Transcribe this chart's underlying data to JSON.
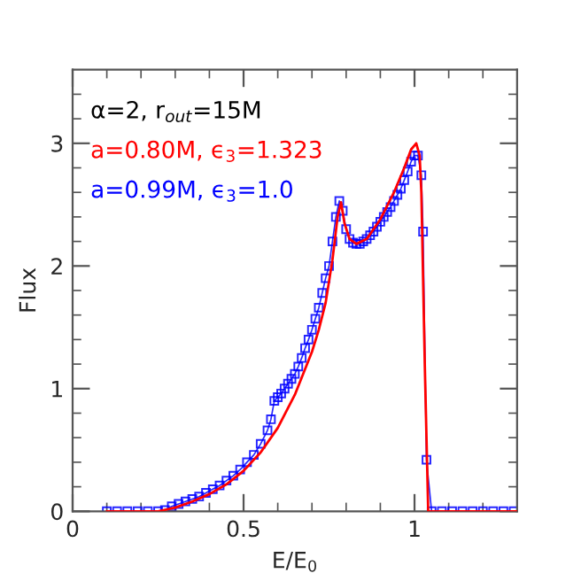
{
  "chart_data": {
    "type": "line",
    "xlabel": "E/E$_{0}$",
    "ylabel": "Flux",
    "annotations": [
      "α=2, r$_{out}$=15M"
    ],
    "xlim": [
      0,
      1.3
    ],
    "ylim": [
      0,
      3.6
    ],
    "xticks": [
      0,
      {
        "value": 0.1,
        "label": null
      },
      {
        "value": 0.2,
        "label": null
      },
      {
        "value": 0.3,
        "label": null
      },
      {
        "value": 0.4,
        "label": null
      },
      0.5,
      {
        "value": 0.6,
        "label": null
      },
      {
        "value": 0.7,
        "label": null
      },
      {
        "value": 0.8,
        "label": null
      },
      {
        "value": 0.9,
        "label": null
      },
      1,
      {
        "value": 1.1,
        "label": null
      },
      {
        "value": 1.2,
        "label": null
      }
    ],
    "yticks": [
      0,
      {
        "value": 0.2,
        "label": null
      },
      {
        "value": 0.4,
        "label": null
      },
      {
        "value": 0.6,
        "label": null
      },
      {
        "value": 0.8,
        "label": null
      },
      1,
      {
        "value": 1.2,
        "label": null
      },
      {
        "value": 1.4,
        "label": null
      },
      {
        "value": 1.6,
        "label": null
      },
      {
        "value": 1.8,
        "label": null
      },
      2,
      {
        "value": 2.2,
        "label": null
      },
      {
        "value": 2.4,
        "label": null
      },
      {
        "value": 2.6,
        "label": null
      },
      {
        "value": 2.8,
        "label": null
      },
      3,
      {
        "value": 3.2,
        "label": null
      },
      {
        "value": 3.4,
        "label": null
      }
    ],
    "grid": false,
    "legend": "top left",
    "series": [
      {
        "name": "a=0.80M, ϵ$_{3}$=1.323",
        "color": "#ff0000",
        "marker": "none",
        "x": [
          0.1,
          0.25,
          0.3,
          0.35,
          0.4,
          0.45,
          0.5,
          0.55,
          0.6,
          0.65,
          0.7,
          0.72,
          0.74,
          0.76,
          0.775,
          0.785,
          0.795,
          0.81,
          0.83,
          0.86,
          0.9,
          0.94,
          0.97,
          0.99,
          1.005,
          1.015,
          1.02,
          1.03,
          1.04,
          1.3
        ],
        "values": [
          0,
          0,
          0.03,
          0.08,
          0.14,
          0.22,
          0.33,
          0.48,
          0.68,
          0.95,
          1.3,
          1.48,
          1.7,
          2.05,
          2.4,
          2.52,
          2.35,
          2.22,
          2.18,
          2.22,
          2.38,
          2.6,
          2.8,
          2.95,
          3.0,
          2.9,
          2.6,
          1.2,
          0,
          0
        ]
      },
      {
        "name": "a=0.99M, ϵ$_{3}$=1.0",
        "color": "#0000ff",
        "marker": "square",
        "x": [
          0.1,
          0.13,
          0.16,
          0.19,
          0.22,
          0.25,
          0.27,
          0.29,
          0.31,
          0.33,
          0.35,
          0.37,
          0.39,
          0.41,
          0.43,
          0.45,
          0.47,
          0.49,
          0.51,
          0.53,
          0.55,
          0.57,
          0.58,
          0.59,
          0.6,
          0.61,
          0.62,
          0.63,
          0.64,
          0.65,
          0.66,
          0.67,
          0.68,
          0.69,
          0.7,
          0.71,
          0.72,
          0.73,
          0.74,
          0.75,
          0.76,
          0.77,
          0.78,
          0.79,
          0.8,
          0.81,
          0.82,
          0.83,
          0.84,
          0.85,
          0.86,
          0.87,
          0.88,
          0.89,
          0.9,
          0.91,
          0.92,
          0.93,
          0.94,
          0.95,
          0.96,
          0.97,
          0.98,
          0.99,
          1.0,
          1.01,
          1.02,
          1.025,
          1.035,
          1.05,
          1.08,
          1.11,
          1.14,
          1.17,
          1.2,
          1.23,
          1.26,
          1.29
        ],
        "values": [
          0,
          0,
          0,
          0,
          0,
          0,
          0.01,
          0.04,
          0.06,
          0.08,
          0.1,
          0.12,
          0.15,
          0.18,
          0.21,
          0.25,
          0.29,
          0.34,
          0.4,
          0.46,
          0.55,
          0.66,
          0.75,
          0.9,
          0.93,
          0.96,
          1.0,
          1.04,
          1.08,
          1.12,
          1.18,
          1.25,
          1.33,
          1.4,
          1.48,
          1.57,
          1.66,
          1.78,
          1.9,
          2.0,
          2.2,
          2.4,
          2.53,
          2.45,
          2.3,
          2.22,
          2.19,
          2.18,
          2.18,
          2.2,
          2.22,
          2.25,
          2.28,
          2.32,
          2.36,
          2.4,
          2.44,
          2.48,
          2.53,
          2.58,
          2.63,
          2.7,
          2.77,
          2.85,
          2.9,
          2.9,
          2.74,
          2.28,
          0.42,
          0,
          0,
          0,
          0,
          0,
          0,
          0,
          0,
          0
        ]
      }
    ]
  }
}
